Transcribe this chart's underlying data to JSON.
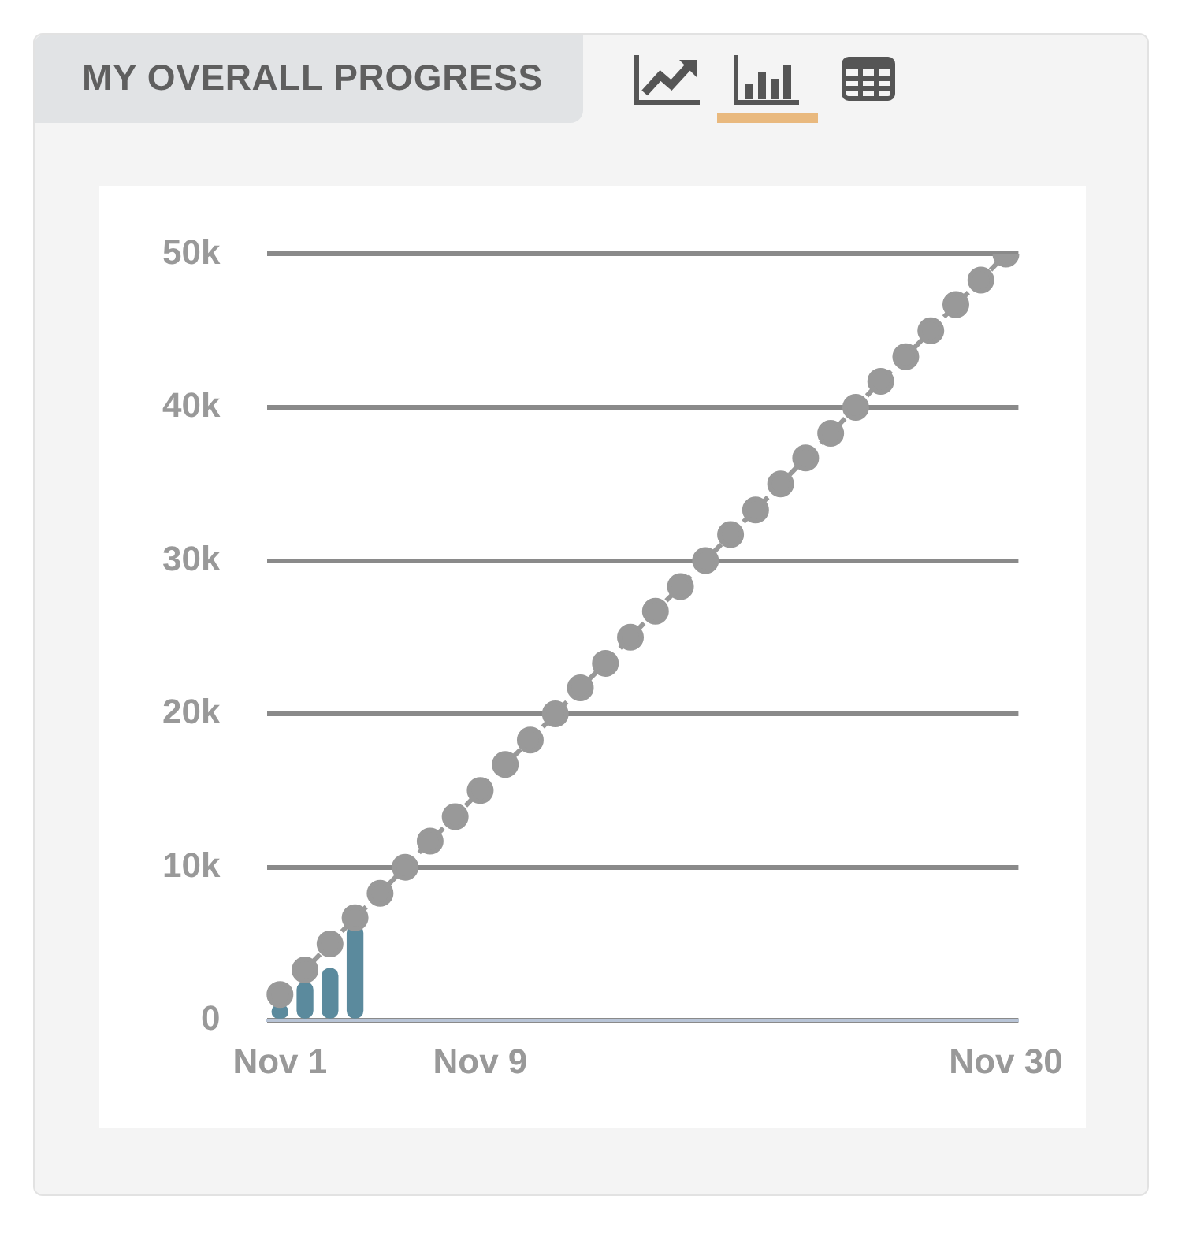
{
  "chart_data": {
    "type": "bar",
    "title": "MY OVERALL PROGRESS",
    "categories": [
      "Nov 1",
      null,
      null,
      null,
      null,
      null,
      null,
      null,
      "Nov 9",
      null,
      null,
      null,
      null,
      null,
      null,
      null,
      null,
      null,
      null,
      null,
      null,
      null,
      null,
      null,
      null,
      null,
      null,
      null,
      null,
      "Nov 30"
    ],
    "series": [
      {
        "color": "#5b8a9d",
        "values": [
          1000,
          2500,
          3400,
          6200,
          null,
          null,
          null,
          null,
          null,
          null,
          null,
          null,
          null,
          null,
          null,
          null,
          null,
          null,
          null,
          null,
          null,
          null,
          null,
          null,
          null,
          null,
          null,
          null,
          null,
          null
        ]
      },
      {
        "type": "line",
        "color": "#999999",
        "marker": "circle",
        "line_style": "dashed",
        "values": [
          1700,
          3300,
          5000,
          6700,
          8300,
          10000,
          11700,
          13300,
          15000,
          16700,
          18300,
          20000,
          21700,
          23300,
          25000,
          26700,
          28300,
          30000,
          31700,
          33300,
          35000,
          36700,
          38300,
          40000,
          41700,
          43300,
          45000,
          46700,
          48300,
          50000
        ]
      }
    ],
    "ylim": [
      0,
      50000
    ],
    "yticks": [
      {
        "value": 0,
        "label": "0"
      },
      {
        "value": 10000,
        "label": "10k"
      },
      {
        "value": 20000,
        "label": "20k"
      },
      {
        "value": 30000,
        "label": "30k"
      },
      {
        "value": 40000,
        "label": "40k"
      },
      {
        "value": 50000,
        "label": "50k"
      }
    ],
    "grid": "y",
    "legend": false
  }
}
